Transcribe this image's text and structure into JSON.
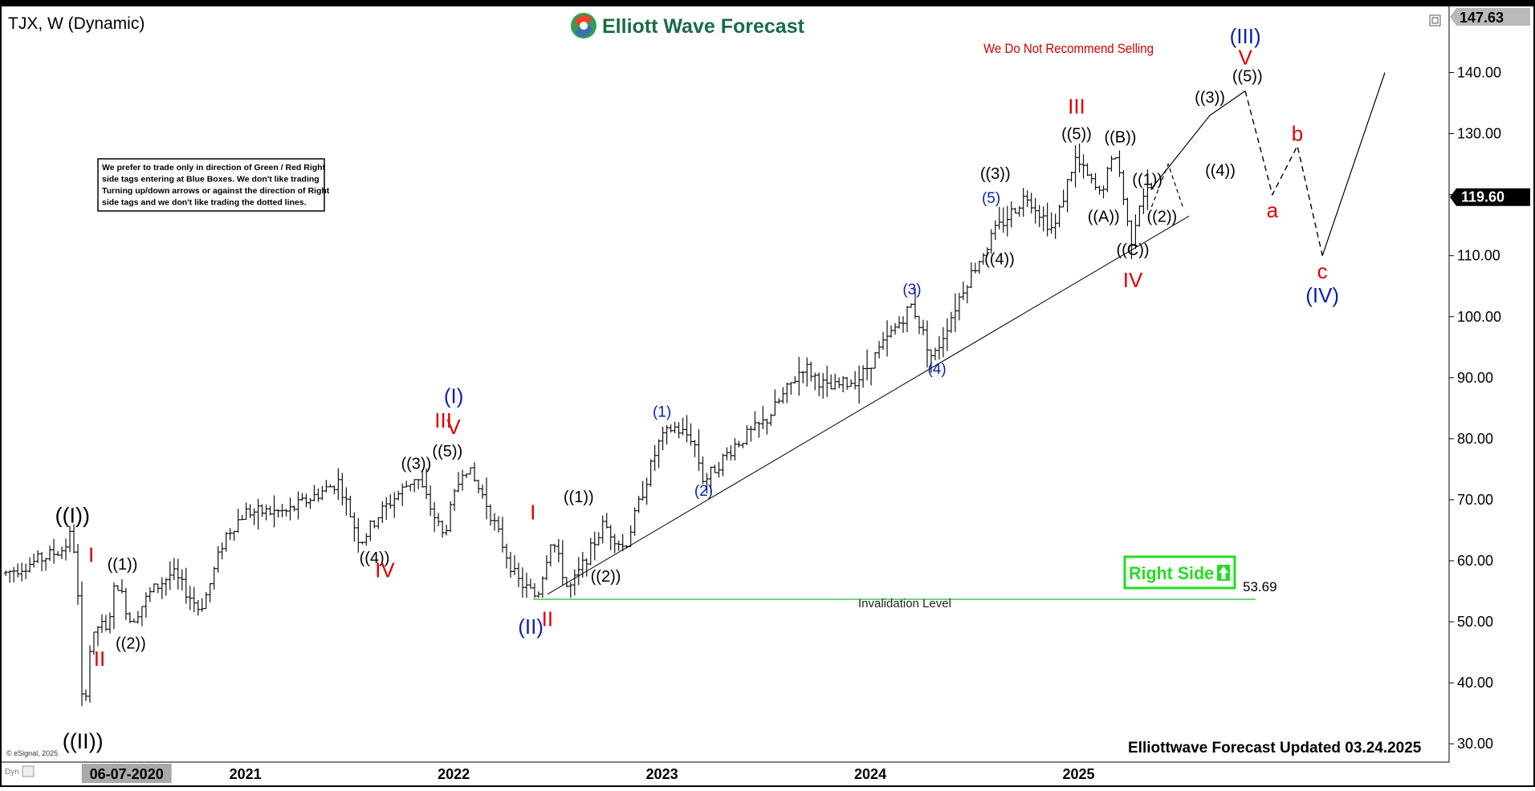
{
  "header": {
    "symbol_title": "TJX, W (Dynamic)",
    "brand": "Elliott Wave Forecast",
    "price_box_top": "147.63"
  },
  "notes": {
    "disclaimer_lines": [
      "We prefer to trade only in direction of Green / Red Right",
      "side tags entering at Blue Boxes. We don't like trading",
      "Turning up/down arrows or against the direction of Right",
      "side tags and we don't like trading the dotted lines."
    ],
    "sell_warning": "We Do Not Recommend Selling",
    "right_side_tag": "Right Side",
    "invalidation_label": "Invalidation Level",
    "invalidation_value": "53.69",
    "updated": "Elliottwave Forecast Updated 03.24.2025",
    "copyright": "© eSignal, 2025",
    "corner_tag": "Dyn"
  },
  "colors": {
    "red": "#e00000",
    "blue": "#0a1fb4",
    "black": "#000000",
    "green": "#22dd22",
    "bars": "#111111"
  },
  "chart_data": {
    "type": "bar",
    "timeframe": "W",
    "ylim": [
      27.0,
      147.63
    ],
    "y_ticks": [
      30,
      40,
      50,
      60,
      70,
      80,
      90,
      100,
      110,
      120,
      130,
      140
    ],
    "y_tick_labels": [
      "30.00",
      "40.00",
      "50.00",
      "60.00",
      "70.00",
      "80.00",
      "90.00",
      "100.00",
      "110.00",
      "120.00",
      "130.00",
      "140.00"
    ],
    "current_price": 119.6,
    "current_price_label": "119.60",
    "x_range": [
      2019.83,
      2026.47
    ],
    "x_tick_labels": [
      {
        "x": 2020.43,
        "label": "06-07-2020",
        "highlight": true
      },
      {
        "x": 2021.0,
        "label": "2021"
      },
      {
        "x": 2022.0,
        "label": "2022"
      },
      {
        "x": 2023.0,
        "label": "2023"
      },
      {
        "x": 2024.0,
        "label": "2024"
      },
      {
        "x": 2025.0,
        "label": "2025"
      }
    ],
    "price_path": [
      [
        2019.85,
        58
      ],
      [
        2020.0,
        60
      ],
      [
        2020.13,
        62
      ],
      [
        2020.17,
        65
      ],
      [
        2020.2,
        52
      ],
      [
        2020.22,
        33
      ],
      [
        2020.25,
        45
      ],
      [
        2020.3,
        50
      ],
      [
        2020.33,
        48
      ],
      [
        2020.38,
        57
      ],
      [
        2020.45,
        50
      ],
      [
        2020.55,
        55
      ],
      [
        2020.65,
        58
      ],
      [
        2020.78,
        52
      ],
      [
        2020.82,
        55
      ],
      [
        2020.9,
        64
      ],
      [
        2021.0,
        68
      ],
      [
        2021.2,
        68
      ],
      [
        2021.45,
        73
      ],
      [
        2021.55,
        63
      ],
      [
        2021.65,
        68
      ],
      [
        2021.82,
        74
      ],
      [
        2021.95,
        64
      ],
      [
        2022.05,
        76
      ],
      [
        2022.15,
        70
      ],
      [
        2022.3,
        57
      ],
      [
        2022.4,
        54
      ],
      [
        2022.47,
        64
      ],
      [
        2022.55,
        55
      ],
      [
        2022.6,
        58
      ],
      [
        2022.72,
        66
      ],
      [
        2022.82,
        62
      ],
      [
        2022.98,
        79
      ],
      [
        2023.05,
        82
      ],
      [
        2023.15,
        80
      ],
      [
        2023.2,
        73
      ],
      [
        2023.35,
        79
      ],
      [
        2023.5,
        83
      ],
      [
        2023.68,
        92
      ],
      [
        2023.8,
        88
      ],
      [
        2023.95,
        90
      ],
      [
        2024.2,
        102
      ],
      [
        2024.3,
        93
      ],
      [
        2024.45,
        105
      ],
      [
        2024.6,
        114
      ],
      [
        2024.75,
        120
      ],
      [
        2024.88,
        114
      ],
      [
        2024.98,
        126
      ],
      [
        2025.1,
        120
      ],
      [
        2025.18,
        127
      ],
      [
        2025.25,
        112
      ],
      [
        2025.3,
        120
      ],
      [
        2025.35,
        121
      ]
    ],
    "projection": {
      "solid": [
        [
          2025.35,
          121
        ],
        [
          2025.63,
          133
        ],
        [
          2025.8,
          137
        ]
      ],
      "dashed": [
        [
          2025.8,
          137
        ],
        [
          2025.93,
          120
        ],
        [
          2026.05,
          128
        ],
        [
          2026.17,
          110
        ]
      ],
      "solid_after": [
        [
          2026.17,
          110
        ],
        [
          2026.47,
          140
        ]
      ],
      "small_dashed": [
        [
          2025.35,
          118
        ],
        [
          2025.43,
          125
        ],
        [
          2025.5,
          118
        ]
      ]
    },
    "trendline": [
      [
        2022.45,
        54.5
      ],
      [
        2025.53,
        116.5
      ]
    ],
    "invalidation_line": [
      [
        2022.38,
        53.69
      ],
      [
        2025.85,
        53.69
      ]
    ],
    "wave_labels": [
      {
        "text": "((I))",
        "x": 2020.17,
        "y": 67.5,
        "color": "black",
        "size": "big"
      },
      {
        "text": "((II))",
        "x": 2020.22,
        "y": 30.5,
        "color": "black",
        "size": "big"
      },
      {
        "text": "I",
        "x": 2020.26,
        "y": 61.0,
        "color": "red",
        "size": "mid"
      },
      {
        "text": "II",
        "x": 2020.3,
        "y": 44.0,
        "color": "red",
        "size": "mid"
      },
      {
        "text": "((1))",
        "x": 2020.41,
        "y": 59.5,
        "color": "black",
        "size": "small"
      },
      {
        "text": "((2))",
        "x": 2020.45,
        "y": 46.5,
        "color": "black",
        "size": "small"
      },
      {
        "text": "((3))",
        "x": 2021.82,
        "y": 76.0,
        "color": "black",
        "size": "small"
      },
      {
        "text": "((4))",
        "x": 2021.62,
        "y": 60.5,
        "color": "black",
        "size": "small"
      },
      {
        "text": "III",
        "x": 2021.95,
        "y": 83.0,
        "color": "red",
        "size": "mid"
      },
      {
        "text": "((5))",
        "x": 2021.97,
        "y": 78.0,
        "color": "black",
        "size": "small"
      },
      {
        "text": "IV",
        "x": 2021.67,
        "y": 58.5,
        "color": "red",
        "size": "mid"
      },
      {
        "text": "(I)",
        "x": 2022.0,
        "y": 87.0,
        "color": "blue",
        "size": "mid"
      },
      {
        "text": "V",
        "x": 2022.0,
        "y": 82.0,
        "color": "red",
        "size": "mid"
      },
      {
        "text": "I",
        "x": 2022.38,
        "y": 68.0,
        "color": "red",
        "size": "mid"
      },
      {
        "text": "(II)",
        "x": 2022.37,
        "y": 49.2,
        "color": "blue",
        "size": "mid"
      },
      {
        "text": "II",
        "x": 2022.45,
        "y": 50.5,
        "color": "red",
        "size": "mid"
      },
      {
        "text": "((1))",
        "x": 2022.6,
        "y": 70.5,
        "color": "black",
        "size": "small"
      },
      {
        "text": "((2))",
        "x": 2022.73,
        "y": 57.5,
        "color": "black",
        "size": "small"
      },
      {
        "text": "(1)",
        "x": 2023.0,
        "y": 84.5,
        "color": "blue",
        "size": "xs"
      },
      {
        "text": "(2)",
        "x": 2023.2,
        "y": 71.5,
        "color": "blue",
        "size": "xs"
      },
      {
        "text": "(3)",
        "x": 2024.2,
        "y": 104.5,
        "color": "blue",
        "size": "xs"
      },
      {
        "text": "(4)",
        "x": 2024.32,
        "y": 91.5,
        "color": "blue",
        "size": "xs"
      },
      {
        "text": "((3))",
        "x": 2024.6,
        "y": 123.5,
        "color": "black",
        "size": "small"
      },
      {
        "text": "(5)",
        "x": 2024.58,
        "y": 119.5,
        "color": "blue",
        "size": "xs"
      },
      {
        "text": "((4))",
        "x": 2024.62,
        "y": 109.5,
        "color": "black",
        "size": "small"
      },
      {
        "text": "III",
        "x": 2024.99,
        "y": 134.5,
        "color": "red",
        "size": "mid"
      },
      {
        "text": "((5))",
        "x": 2024.99,
        "y": 130.0,
        "color": "black",
        "size": "small"
      },
      {
        "text": "((B))",
        "x": 2025.2,
        "y": 129.5,
        "color": "black",
        "size": "small"
      },
      {
        "text": "((A))",
        "x": 2025.12,
        "y": 116.5,
        "color": "black",
        "size": "small"
      },
      {
        "text": "((1))",
        "x": 2025.33,
        "y": 122.5,
        "color": "black",
        "size": "small"
      },
      {
        "text": "((2))",
        "x": 2025.4,
        "y": 116.5,
        "color": "black",
        "size": "small"
      },
      {
        "text": "((C))",
        "x": 2025.26,
        "y": 111.0,
        "color": "black",
        "size": "small"
      },
      {
        "text": "IV",
        "x": 2025.26,
        "y": 106.0,
        "color": "red",
        "size": "mid"
      },
      {
        "text": "((3))",
        "x": 2025.63,
        "y": 136.0,
        "color": "black",
        "size": "small"
      },
      {
        "text": "((4))",
        "x": 2025.68,
        "y": 124.0,
        "color": "black",
        "size": "small"
      },
      {
        "text": "((5))",
        "x": 2025.81,
        "y": 139.5,
        "color": "black",
        "size": "small"
      },
      {
        "text": "V",
        "x": 2025.8,
        "y": 142.5,
        "color": "red",
        "size": "mid"
      },
      {
        "text": "(III)",
        "x": 2025.8,
        "y": 146.0,
        "color": "blue",
        "size": "mid"
      },
      {
        "text": "a",
        "x": 2025.93,
        "y": 117.5,
        "color": "red",
        "size": "mid"
      },
      {
        "text": "b",
        "x": 2026.05,
        "y": 130.0,
        "color": "red",
        "size": "mid"
      },
      {
        "text": "c",
        "x": 2026.17,
        "y": 107.5,
        "color": "red",
        "size": "mid"
      },
      {
        "text": "(IV)",
        "x": 2026.17,
        "y": 103.5,
        "color": "blue",
        "size": "mid"
      }
    ]
  }
}
